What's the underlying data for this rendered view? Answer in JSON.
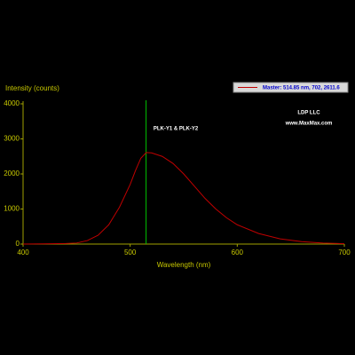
{
  "chart_data": {
    "type": "line",
    "x_label": "Wavelength (nm)",
    "y_label": "Intensity (counts)",
    "x": [
      400,
      420,
      440,
      450,
      460,
      470,
      480,
      490,
      500,
      505,
      510,
      515,
      520,
      530,
      540,
      550,
      560,
      570,
      580,
      590,
      600,
      620,
      640,
      660,
      680,
      700
    ],
    "series": [
      {
        "name": "Master: 514.85 nm, 702, 2611.6",
        "color": "#c00000",
        "values": [
          0,
          5,
          15,
          30,
          100,
          250,
          550,
          1050,
          1700,
          2100,
          2450,
          2611,
          2600,
          2500,
          2300,
          2000,
          1650,
          1300,
          1000,
          750,
          550,
          300,
          150,
          70,
          30,
          10
        ]
      }
    ],
    "xlim": [
      400,
      700
    ],
    "ylim": [
      0,
      4000
    ],
    "xticks": [
      400,
      500,
      600,
      700
    ],
    "yticks": [
      0,
      1000,
      2000,
      3000,
      4000
    ],
    "marker": {
      "x": 514.85,
      "color": "#00c000"
    },
    "annotations": [
      "PLK-Y1 & PLK-Y2",
      "LDP LLC",
      "www.MaxMax.com"
    ]
  }
}
